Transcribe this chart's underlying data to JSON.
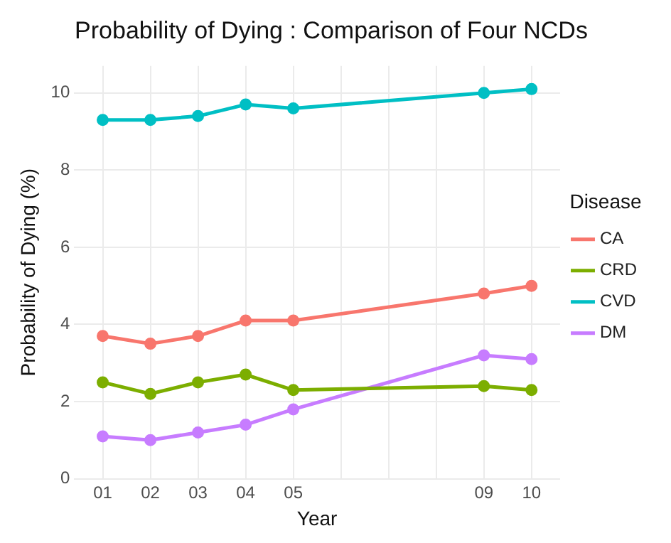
{
  "chart_data": {
    "type": "line",
    "title": "Probability of Dying : Comparison of Four NCDs",
    "xlabel": "Year",
    "ylabel": "Probability of Dying (%)",
    "legend_title": "Disease",
    "x": [
      1,
      2,
      3,
      4,
      5,
      9,
      10
    ],
    "series": [
      {
        "name": "CA",
        "color": "#f8766d",
        "values": [
          3.7,
          3.5,
          3.7,
          4.1,
          4.1,
          4.8,
          5.0
        ]
      },
      {
        "name": "CRD",
        "color": "#7cae00",
        "values": [
          2.5,
          2.2,
          2.5,
          2.7,
          2.3,
          2.4,
          2.3
        ]
      },
      {
        "name": "CVD",
        "color": "#00bfc4",
        "values": [
          9.3,
          9.3,
          9.4,
          9.7,
          9.6,
          10.0,
          10.1
        ]
      },
      {
        "name": "DM",
        "color": "#c77cff",
        "values": [
          1.1,
          1.0,
          1.2,
          1.4,
          1.8,
          3.2,
          3.1
        ]
      }
    ],
    "xlim": [
      0.4,
      10.6
    ],
    "xticks": [
      {
        "value": 1,
        "label": "01"
      },
      {
        "value": 2,
        "label": "02"
      },
      {
        "value": 3,
        "label": "03"
      },
      {
        "value": 4,
        "label": "04"
      },
      {
        "value": 5,
        "label": "05"
      },
      {
        "value": 6,
        "label": null
      },
      {
        "value": 7,
        "label": null
      },
      {
        "value": 8,
        "label": null
      },
      {
        "value": 9,
        "label": "09"
      },
      {
        "value": 10,
        "label": "10"
      }
    ],
    "ylim": [
      0,
      10.7
    ],
    "yticks": [
      0,
      2,
      4,
      6,
      8,
      10
    ],
    "grid": true,
    "legend": "right",
    "marker": "circle",
    "line_style": "solid"
  }
}
